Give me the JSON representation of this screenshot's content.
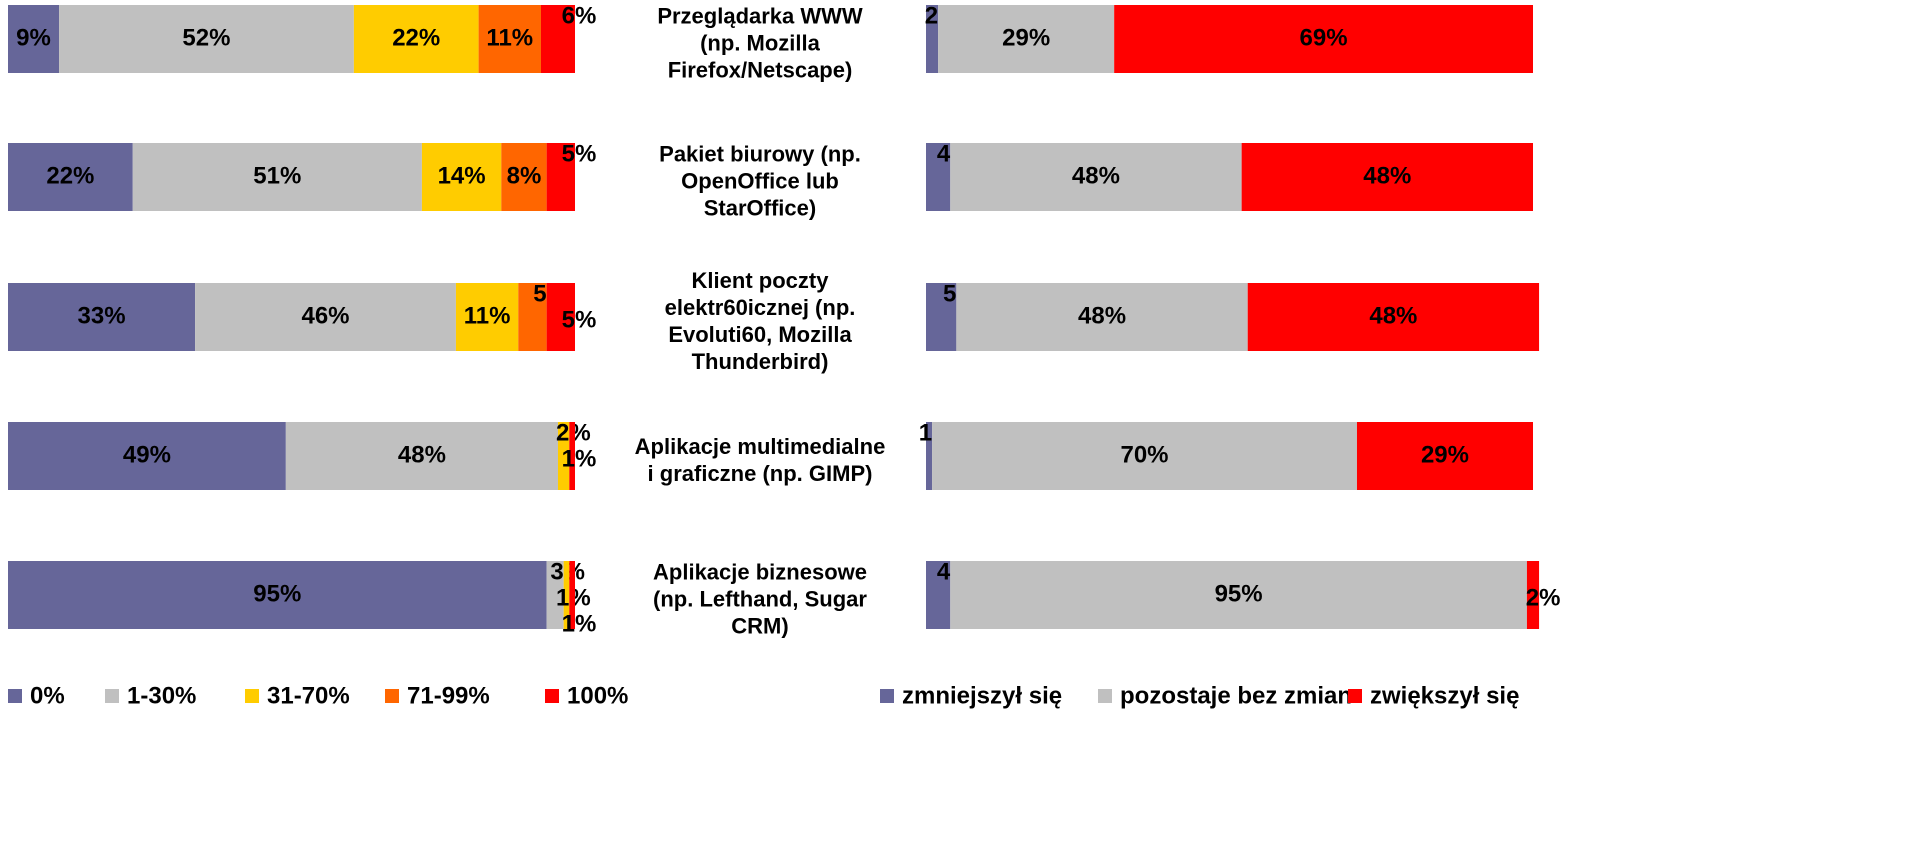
{
  "chart_data": [
    {
      "type": "bar",
      "orientation": "horizontal",
      "stacked": true,
      "categories": [
        "Przeglądarka WWW\n(np. Mozilla\nFirefox/Netscape)",
        "Pakiet biurowy (np.\nOpenOffice lub\nStarOffice)",
        "Klient poczty\nelektr60icznej (np.\nEvoluti60, Mozilla\nThunderbird)",
        "Aplikacje multimedialne\ni graficzne (np. GIMP)",
        "Aplikacje biznesowe\n(np. Lefthand, Sugar\nCRM)"
      ],
      "xlim": [
        0,
        100
      ],
      "series": [
        {
          "name": "0%",
          "color": "#666699",
          "values": [
            9,
            22,
            33,
            49,
            95
          ],
          "value_labels": [
            "9%",
            "22%",
            "33%",
            "49%",
            "95%"
          ]
        },
        {
          "name": "1-30%",
          "color": "#c0c0c0",
          "values": [
            52,
            51,
            46,
            48,
            3
          ],
          "value_labels": [
            "52%",
            "51%",
            "46%",
            "48%",
            "3%"
          ]
        },
        {
          "name": "31-70%",
          "color": "#ffcc00",
          "values": [
            22,
            14,
            11,
            2,
            1
          ],
          "value_labels": [
            "22%",
            "14%",
            "11%",
            "2%",
            "1%"
          ]
        },
        {
          "name": "71-99%",
          "color": "#ff6600",
          "values": [
            11,
            8,
            5,
            0,
            0
          ],
          "value_labels": [
            "11%",
            "8%",
            "5%",
            null,
            null
          ]
        },
        {
          "name": "100%",
          "color": "#ff0000",
          "values": [
            6,
            5,
            5,
            1,
            1
          ],
          "value_labels": [
            "6%",
            "5%",
            "5%",
            "1%",
            "1%"
          ]
        }
      ]
    },
    {
      "type": "bar",
      "orientation": "horizontal",
      "stacked": true,
      "xlim": [
        0,
        100
      ],
      "series": [
        {
          "name": "zmniejszył się",
          "color": "#666699",
          "values": [
            2,
            4,
            5,
            1,
            4
          ],
          "value_labels": [
            "2%",
            "4%",
            "5%",
            "1%",
            "4%"
          ]
        },
        {
          "name": "pozostaje bez zmian",
          "color": "#c0c0c0",
          "values": [
            29,
            48,
            48,
            70,
            95
          ],
          "value_labels": [
            "29%",
            "48%",
            "48%",
            "70%",
            "95%"
          ]
        },
        {
          "name": "zwiększył się",
          "color": "#ff0000",
          "values": [
            69,
            48,
            48,
            29,
            2
          ],
          "value_labels": [
            "69%",
            "48%",
            "48%",
            "29%",
            "2%"
          ]
        }
      ]
    }
  ]
}
